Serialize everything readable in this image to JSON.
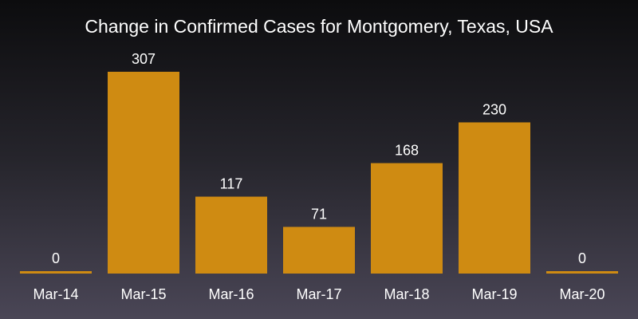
{
  "chart_data": {
    "type": "bar",
    "title": "Change in Confirmed Cases for Montgomery, Texas, USA",
    "categories": [
      "Mar-14",
      "Mar-15",
      "Mar-16",
      "Mar-17",
      "Mar-18",
      "Mar-19",
      "Mar-20"
    ],
    "values": [
      0,
      307,
      117,
      71,
      168,
      230,
      0
    ],
    "data_labels": [
      "0",
      "307",
      "117",
      "71",
      "168",
      "230",
      "0"
    ],
    "xlabel": "",
    "ylabel": "",
    "ylim": [
      0,
      307
    ],
    "grid": false,
    "legend": "none",
    "colors": {
      "bar": "#cf8b12",
      "text": "#ffffff",
      "background_top": "#0c0c0e",
      "background_bottom": "#4a4656"
    }
  }
}
